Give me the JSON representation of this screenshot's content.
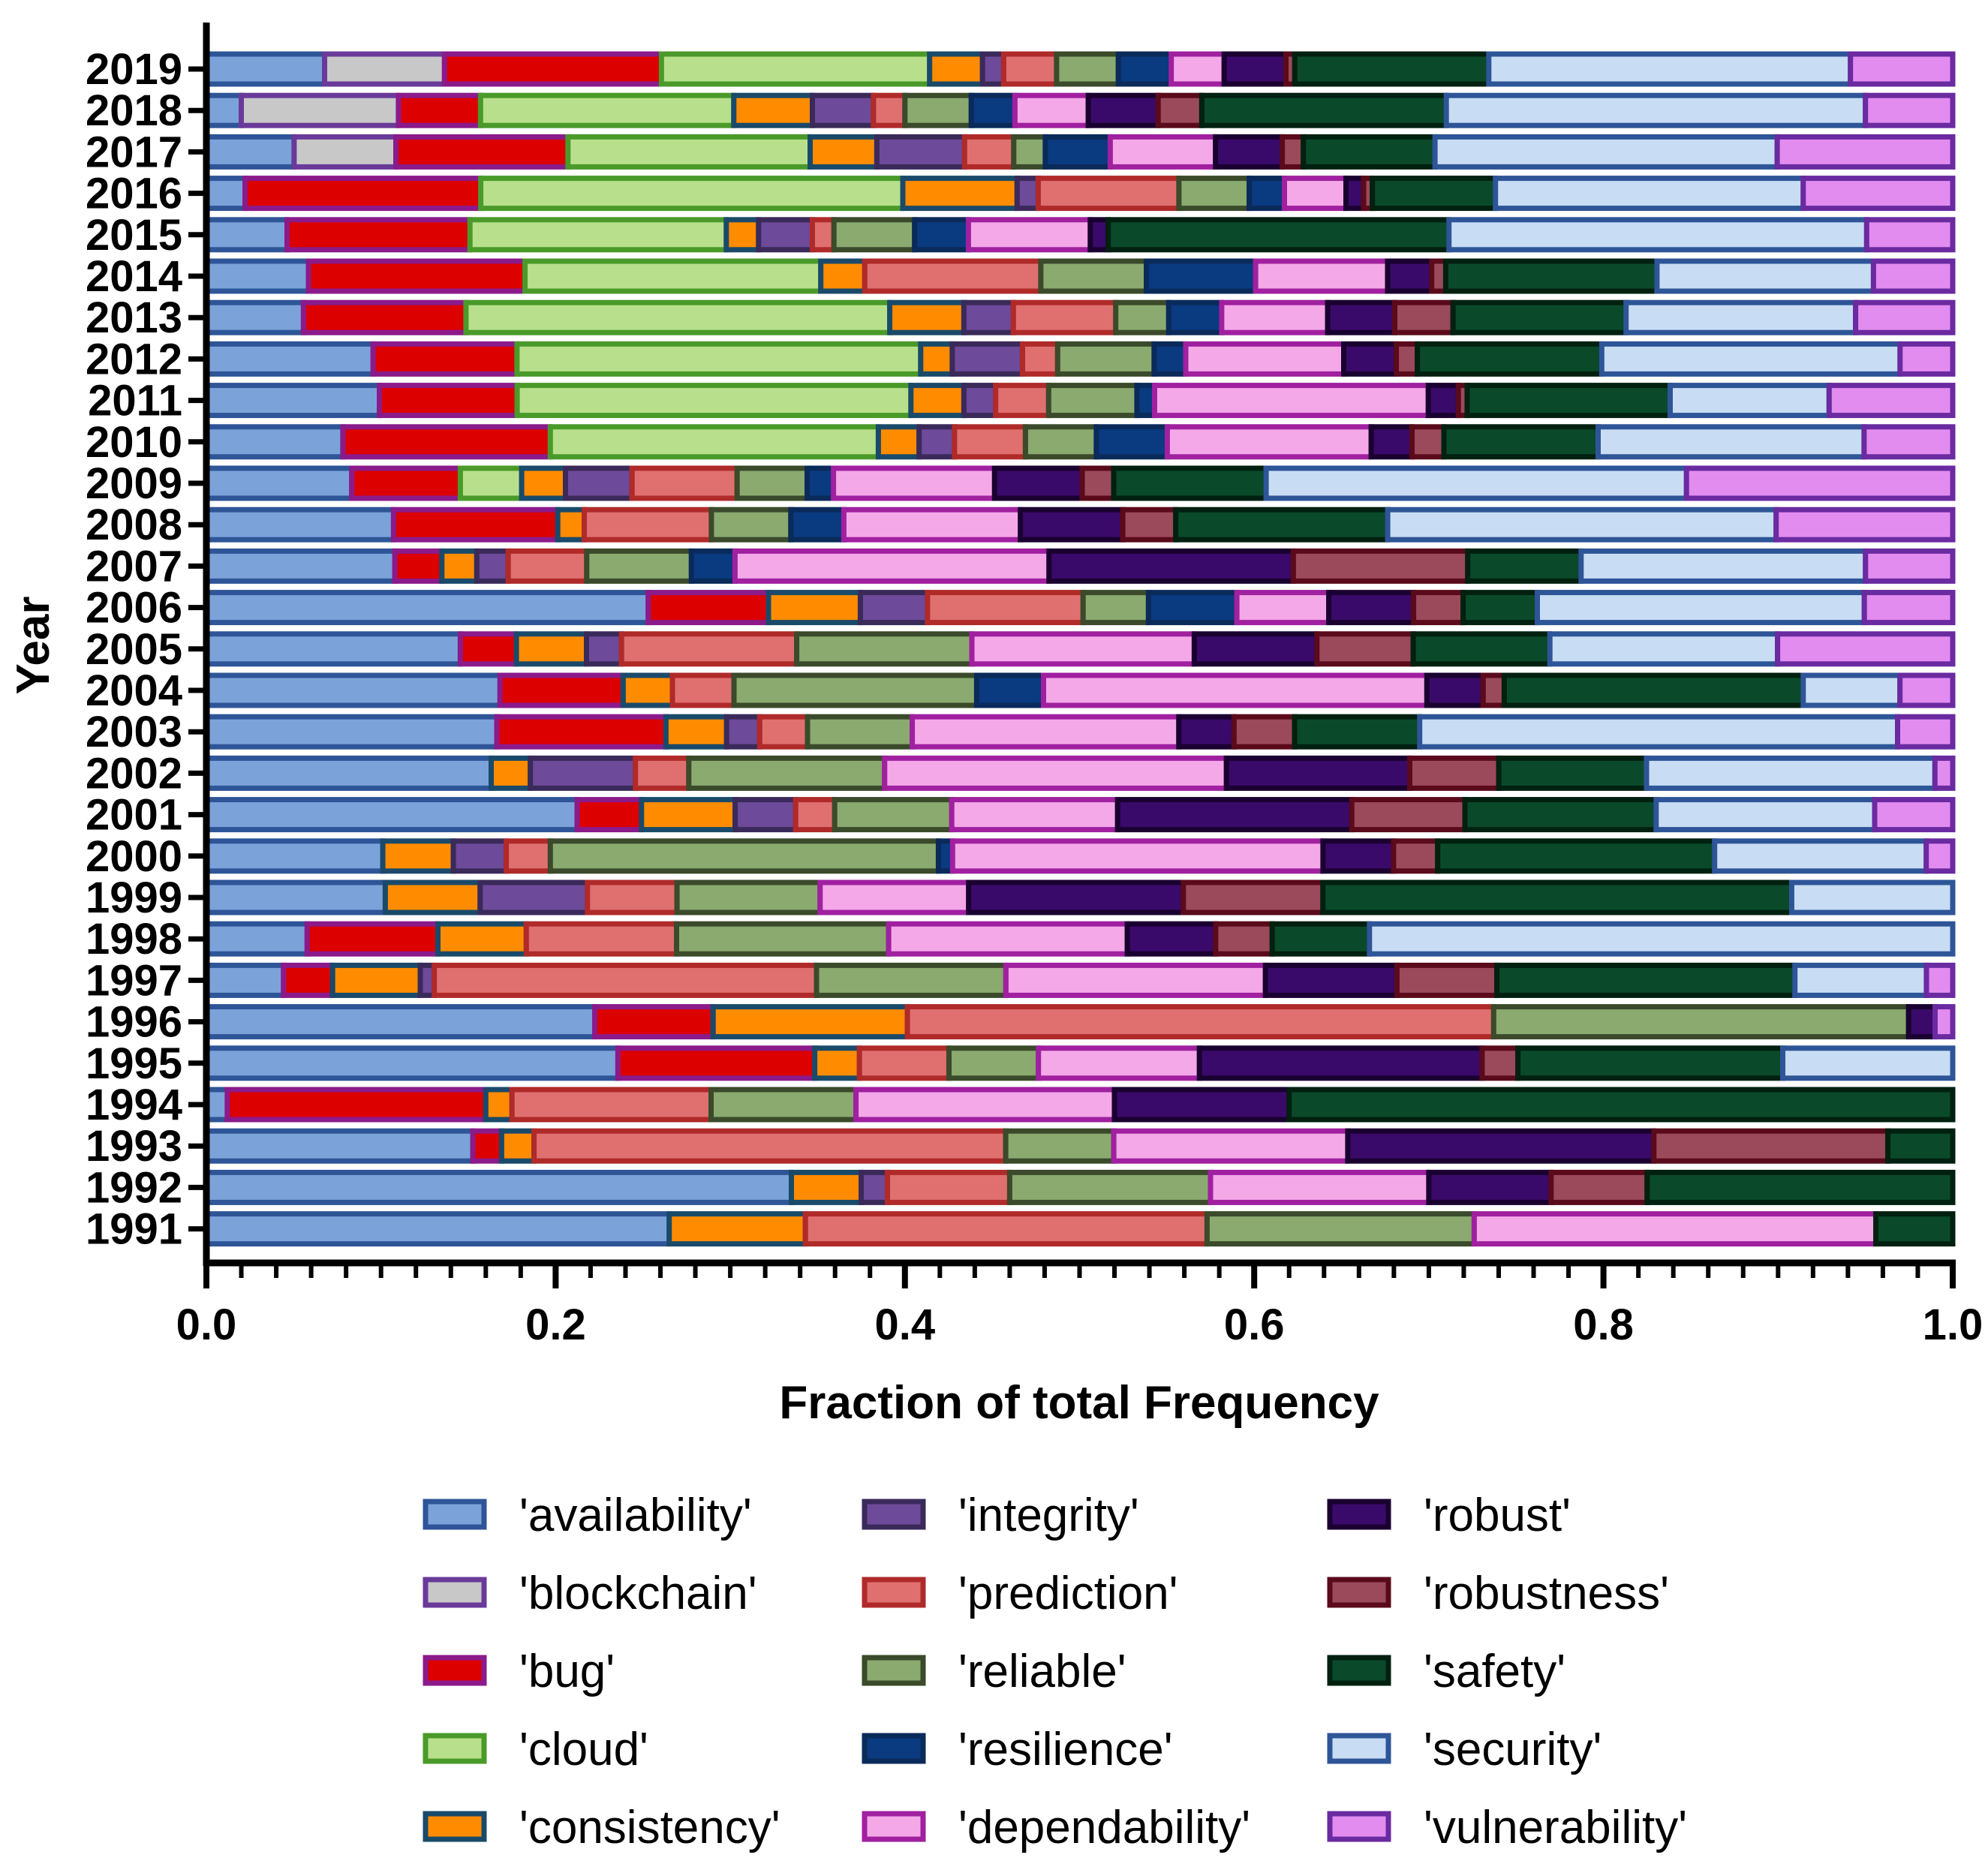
{
  "chart_data": {
    "type": "bar",
    "orientation": "horizontal",
    "stacked": true,
    "normalized": true,
    "xlabel": "Fraction of total Frequency",
    "ylabel": "Year",
    "xlim": [
      0,
      1
    ],
    "xticks": [
      "0.0",
      "0.2",
      "0.4",
      "0.6",
      "0.8",
      "1.0"
    ],
    "categories": [
      "2019",
      "2018",
      "2017",
      "2016",
      "2015",
      "2014",
      "2013",
      "2012",
      "2011",
      "2010",
      "2009",
      "2008",
      "2007",
      "2006",
      "2005",
      "2004",
      "2003",
      "2002",
      "2001",
      "2000",
      "1999",
      "1998",
      "1997",
      "1996",
      "1995",
      "1994",
      "1993",
      "1992",
      "1991"
    ],
    "series": [
      {
        "name": "'availability'",
        "fill": "#7ba3d9",
        "edge": "#2e5597",
        "values": [
          0.067,
          0.02,
          0.05,
          0.022,
          0.045,
          0.058,
          0.055,
          0.095,
          0.098,
          0.077,
          0.083,
          0.106,
          0.108,
          0.25,
          0.145,
          0.167,
          0.158,
          0.16,
          0.19,
          0.1,
          0.1,
          0.057,
          0.044,
          0.22,
          0.23,
          0.012,
          0.148,
          0.335,
          0.265
        ]
      },
      {
        "name": "'blockchain'",
        "fill": "#c8c8c8",
        "edge": "#6a3a9a",
        "values": [
          0.068,
          0.09,
          0.058,
          0,
          0,
          0,
          0,
          0,
          0,
          0,
          0,
          0,
          0,
          0,
          0,
          0,
          0,
          0,
          0,
          0,
          0,
          0,
          0,
          0,
          0,
          0,
          0,
          0,
          0
        ]
      },
      {
        "name": "'bug'",
        "fill": "#dd0000",
        "edge": "#8b1a8b",
        "values": [
          0.123,
          0.047,
          0.098,
          0.134,
          0.102,
          0.123,
          0.092,
          0.082,
          0.078,
          0.117,
          0.062,
          0.093,
          0.027,
          0.068,
          0.032,
          0.07,
          0.092,
          0,
          0.033,
          0,
          0,
          0.074,
          0.028,
          0.067,
          0.11,
          0.148,
          0.016,
          0,
          0
        ]
      },
      {
        "name": "'cloud'",
        "fill": "#b8e08c",
        "edge": "#4a9a2a",
        "values": [
          0.152,
          0.145,
          0.138,
          0.24,
          0.143,
          0.168,
          0.24,
          0.23,
          0.223,
          0.185,
          0.035,
          0,
          0,
          0,
          0,
          0,
          0,
          0,
          0,
          0,
          0,
          0,
          0,
          0,
          0,
          0,
          0,
          0,
          0
        ]
      },
      {
        "name": "'consistency'",
        "fill": "#ff8c00",
        "edge": "#1a4a6a",
        "values": [
          0.03,
          0.045,
          0.038,
          0.065,
          0.018,
          0.025,
          0.042,
          0.018,
          0.03,
          0.023,
          0.025,
          0.015,
          0.02,
          0.052,
          0.04,
          0.028,
          0.033,
          0.022,
          0.048,
          0.04,
          0.053,
          0.05,
          0.05,
          0.11,
          0.025,
          0.015,
          0.018,
          0.04,
          0.078
        ]
      },
      {
        "name": "'integrity'",
        "fill": "#6e4a9a",
        "edge": "#3a2a5a",
        "values": [
          0.012,
          0.035,
          0.05,
          0.012,
          0.03,
          0,
          0.028,
          0.04,
          0.018,
          0.02,
          0.038,
          0,
          0.018,
          0.038,
          0.02,
          0,
          0.018,
          0.059,
          0.031,
          0.03,
          0.06,
          0,
          0.008,
          0,
          0,
          0,
          0,
          0.015,
          0
        ]
      },
      {
        "name": "'prediction'",
        "fill": "#e07070",
        "edge": "#b02a2a",
        "values": [
          0.03,
          0.018,
          0.028,
          0.08,
          0.012,
          0.1,
          0.058,
          0.02,
          0.03,
          0.04,
          0.06,
          0.072,
          0.045,
          0.088,
          0.1,
          0.035,
          0.026,
          0.03,
          0.02,
          0.025,
          0.05,
          0.085,
          0.218,
          0.332,
          0.05,
          0.114,
          0.262,
          0.07,
          0.23
        ]
      },
      {
        "name": "'reliable'",
        "fill": "#8aaa70",
        "edge": "#3a4a2a",
        "values": [
          0.035,
          0.038,
          0.018,
          0.04,
          0.045,
          0.06,
          0.03,
          0.055,
          0.05,
          0.04,
          0.04,
          0.045,
          0.06,
          0.037,
          0.1,
          0.138,
          0.057,
          0.11,
          0.06,
          0.22,
          0.08,
          0.12,
          0.108,
          0.235,
          0.05,
          0.083,
          0.06,
          0.115,
          0.153
        ]
      },
      {
        "name": "'resilience'",
        "fill": "#0a3a80",
        "edge": "#0a2a5a",
        "values": [
          0.03,
          0.025,
          0.037,
          0.02,
          0.03,
          0.062,
          0.03,
          0.018,
          0.01,
          0.04,
          0.015,
          0.03,
          0.025,
          0.05,
          0,
          0.038,
          0,
          0,
          0,
          0.008,
          0,
          0,
          0,
          0,
          0,
          0,
          0,
          0,
          0
        ]
      },
      {
        "name": "'dependability'",
        "fill": "#f4a8e8",
        "edge": "#a020a0",
        "values": [
          0.03,
          0.042,
          0.06,
          0.035,
          0.068,
          0.075,
          0.06,
          0.09,
          0.155,
          0.115,
          0.092,
          0.1,
          0.18,
          0.052,
          0.127,
          0.218,
          0.145,
          0.192,
          0.085,
          0.21,
          0.083,
          0.135,
          0.148,
          0,
          0.09,
          0.148,
          0.13,
          0.125,
          0.23
        ]
      },
      {
        "name": "'robust'",
        "fill": "#3a0a6a",
        "edge": "#1a0030",
        "values": [
          0.035,
          0.04,
          0.038,
          0.01,
          0.01,
          0.025,
          0.038,
          0.03,
          0.017,
          0.023,
          0.05,
          0.058,
          0.14,
          0.048,
          0.07,
          0.032,
          0.03,
          0.103,
          0.12,
          0.04,
          0.12,
          0.05,
          0.075,
          0.015,
          0.158,
          0.1,
          0.17,
          0.07,
          0
        ]
      },
      {
        "name": "'robustness'",
        "fill": "#9a4a5a",
        "edge": "#5a0a1a",
        "values": [
          0.005,
          0.025,
          0.012,
          0.005,
          0,
          0.008,
          0.033,
          0.012,
          0.005,
          0.018,
          0.018,
          0.03,
          0.1,
          0.028,
          0.055,
          0.012,
          0.033,
          0.05,
          0.058,
          0.025,
          0.078,
          0.032,
          0.057,
          0,
          0.02,
          0,
          0.13,
          0.055,
          0
        ]
      },
      {
        "name": "'safety'",
        "fill": "#0a4a2a",
        "edge": "#002010",
        "values": [
          0.11,
          0.14,
          0.075,
          0.07,
          0.19,
          0.12,
          0.098,
          0.105,
          0.115,
          0.087,
          0.087,
          0.12,
          0.065,
          0.042,
          0.078,
          0.17,
          0.068,
          0.083,
          0.098,
          0.157,
          0.262,
          0.055,
          0.17,
          0,
          0.148,
          0.38,
          0.036,
          0.175,
          0.044
        ]
      },
      {
        "name": "'security'",
        "fill": "#c8ddf4",
        "edge": "#2e5597",
        "values": [
          0.205,
          0.24,
          0.195,
          0.175,
          0.233,
          0.123,
          0.13,
          0.17,
          0.09,
          0.15,
          0.24,
          0.22,
          0.163,
          0.185,
          0.13,
          0.055,
          0.26,
          0.162,
          0.112,
          0.12,
          0.09,
          0.33,
          0.075,
          0,
          0.095,
          0,
          0,
          0,
          0
        ]
      },
      {
        "name": "'vulnerability'",
        "fill": "#e38cf0",
        "edge": "#6a2aa0",
        "values": [
          0.058,
          0.05,
          0.1,
          0.085,
          0.048,
          0.045,
          0.055,
          0.03,
          0.07,
          0.05,
          0.152,
          0.1,
          0.05,
          0.05,
          0.1,
          0.03,
          0.03,
          0.01,
          0.04,
          0.015,
          0,
          0,
          0.015,
          0.01,
          0,
          0,
          0,
          0,
          0
        ]
      }
    ]
  }
}
